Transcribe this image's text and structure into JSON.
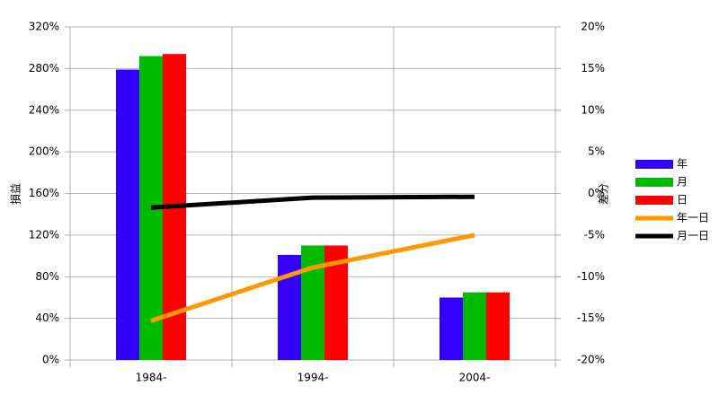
{
  "chart_data": {
    "type": "bar",
    "categories": [
      "1984-",
      "1994-",
      "2004-"
    ],
    "y_label": "損益",
    "y2_label": "差分",
    "ylim": [
      0,
      320
    ],
    "yticks": [
      {
        "value": 0,
        "label": "0%"
      },
      {
        "value": 40,
        "label": "40%"
      },
      {
        "value": 80,
        "label": "80%"
      },
      {
        "value": 120,
        "label": "120%"
      },
      {
        "value": 160,
        "label": "160%"
      },
      {
        "value": 200,
        "label": "200%"
      },
      {
        "value": 240,
        "label": "240%"
      },
      {
        "value": 280,
        "label": "280%"
      },
      {
        "value": 320,
        "label": "320%"
      }
    ],
    "y2lim": [
      -20,
      20
    ],
    "y2ticks": [
      {
        "value": -20,
        "label": "-20%"
      },
      {
        "value": -15,
        "label": "-15%"
      },
      {
        "value": -10,
        "label": "-10%"
      },
      {
        "value": -5,
        "label": "-5%"
      },
      {
        "value": 0,
        "label": "0%"
      },
      {
        "value": 5,
        "label": "5%"
      },
      {
        "value": 10,
        "label": "10%"
      },
      {
        "value": 15,
        "label": "15%"
      },
      {
        "value": 20,
        "label": "20%"
      }
    ],
    "grid": true,
    "legend": "right",
    "series": [
      {
        "name": "年",
        "color": "#3300ff",
        "values": [
          279,
          101,
          60
        ]
      },
      {
        "name": "月",
        "color": "#00bb00",
        "values": [
          292,
          110,
          65
        ]
      },
      {
        "name": "日",
        "color": "#ff0000",
        "values": [
          294,
          110,
          65
        ]
      },
      {
        "name": "年一日",
        "type": "line",
        "axis": "y2",
        "color": "#ff9900",
        "values": [
          -15.3,
          -8.9,
          -5.0
        ]
      },
      {
        "name": "月一日",
        "type": "line",
        "axis": "y2",
        "color": "#000000",
        "values": [
          -1.7,
          -0.5,
          -0.4
        ]
      }
    ]
  }
}
